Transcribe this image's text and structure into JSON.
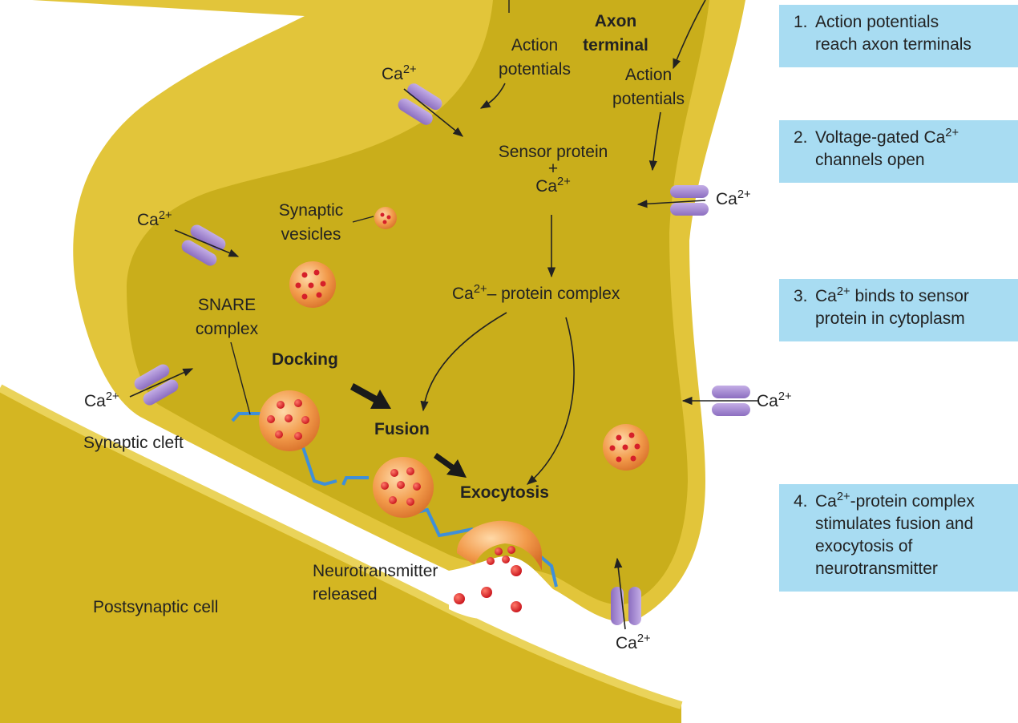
{
  "steps": [
    {
      "number": "1.",
      "line1": "Action potentials",
      "line2": "reach axon terminals"
    },
    {
      "number": "2.",
      "line1_pre": "Voltage-gated Ca",
      "line1_sup": "2+",
      "line2": "channels open"
    },
    {
      "number": "3.",
      "line1_pre": "Ca",
      "line1_sup": "2+",
      "line1_post": " binds to sensor",
      "line2": "protein in cytoplasm"
    },
    {
      "number": "4.",
      "line1_pre": "Ca",
      "line1_sup": "2+",
      "line1_post": "-protein complex",
      "line2": "stimulates fusion and",
      "line3": "exocytosis of",
      "line4": "neurotransmitter"
    }
  ],
  "labels": {
    "axon_terminal_1": "Axon",
    "axon_terminal_2": "terminal",
    "action_potentials_1": "Action",
    "action_potentials_2": "potentials",
    "ca": "Ca",
    "ca_sup": "2+",
    "sensor_protein": "Sensor protein",
    "plus": "+",
    "synaptic_vesicles_1": "Synaptic",
    "synaptic_vesicles_2": "vesicles",
    "complex_pre": "Ca",
    "complex_post": "– protein complex",
    "snare_1": "SNARE",
    "snare_2": "complex",
    "docking": "Docking",
    "fusion": "Fusion",
    "exocytosis": "Exocytosis",
    "synaptic_cleft": "Synaptic cleft",
    "neurotransmitter_1": "Neurotransmitter",
    "neurotransmitter_2": "released",
    "postsynaptic_cell": "Postsynaptic cell"
  },
  "colors": {
    "membrane": "#d9bd2a",
    "cytoplasm": "#c8ae1a",
    "channel": "#a68bd0",
    "vesicle": "#f29240",
    "neurotransmitter": "#dd1f1f",
    "snare": "#3f8fd8",
    "step_box": "#a8dcf2"
  }
}
